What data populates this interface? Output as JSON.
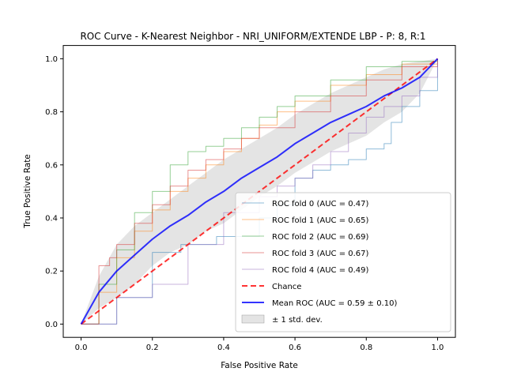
{
  "chart_data": {
    "type": "line",
    "title": "ROC Curve - K-Nearest Neighbor - NRI_UNIFORM/EXTENDE LBP - P: 8, R:1",
    "xlabel": "False Positive Rate",
    "ylabel": "True Positive Rate",
    "xlim": [
      -0.05,
      1.05
    ],
    "ylim": [
      -0.05,
      1.05
    ],
    "xticks": [
      "0.0",
      "0.2",
      "0.4",
      "0.6",
      "0.8",
      "1.0"
    ],
    "yticks": [
      "0.0",
      "0.2",
      "0.4",
      "0.6",
      "0.8",
      "1.0"
    ],
    "grid": false,
    "legend_position": "lower-right",
    "series": [
      {
        "name": "ROC fold 0 (AUC = 0.47)",
        "color": "#1f77b4",
        "style": "step",
        "points": [
          [
            0,
            0
          ],
          [
            0.1,
            0.1
          ],
          [
            0.2,
            0.27
          ],
          [
            0.28,
            0.3
          ],
          [
            0.38,
            0.33
          ],
          [
            0.5,
            0.4
          ],
          [
            0.55,
            0.45
          ],
          [
            0.6,
            0.55
          ],
          [
            0.65,
            0.58
          ],
          [
            0.7,
            0.6
          ],
          [
            0.75,
            0.62
          ],
          [
            0.8,
            0.66
          ],
          [
            0.85,
            0.68
          ],
          [
            0.87,
            0.76
          ],
          [
            0.9,
            0.82
          ],
          [
            0.95,
            0.88
          ],
          [
            1,
            1
          ]
        ]
      },
      {
        "name": "ROC fold 1 (AUC = 0.65)",
        "color": "#ff7f0e",
        "style": "step",
        "points": [
          [
            0,
            0
          ],
          [
            0.05,
            0.12
          ],
          [
            0.1,
            0.25
          ],
          [
            0.15,
            0.35
          ],
          [
            0.2,
            0.43
          ],
          [
            0.25,
            0.5
          ],
          [
            0.3,
            0.55
          ],
          [
            0.35,
            0.6
          ],
          [
            0.4,
            0.65
          ],
          [
            0.45,
            0.7
          ],
          [
            0.5,
            0.75
          ],
          [
            0.55,
            0.8
          ],
          [
            0.6,
            0.84
          ],
          [
            0.7,
            0.9
          ],
          [
            0.8,
            0.94
          ],
          [
            0.9,
            0.98
          ],
          [
            1,
            1
          ]
        ]
      },
      {
        "name": "ROC fold 2 (AUC = 0.69)",
        "color": "#2ca02c",
        "style": "step",
        "points": [
          [
            0,
            0
          ],
          [
            0.05,
            0.15
          ],
          [
            0.1,
            0.28
          ],
          [
            0.15,
            0.42
          ],
          [
            0.2,
            0.5
          ],
          [
            0.25,
            0.6
          ],
          [
            0.3,
            0.65
          ],
          [
            0.35,
            0.67
          ],
          [
            0.4,
            0.7
          ],
          [
            0.45,
            0.74
          ],
          [
            0.5,
            0.78
          ],
          [
            0.55,
            0.82
          ],
          [
            0.6,
            0.86
          ],
          [
            0.7,
            0.92
          ],
          [
            0.8,
            0.97
          ],
          [
            0.9,
            0.99
          ],
          [
            1,
            1
          ]
        ]
      },
      {
        "name": "ROC fold 3 (AUC = 0.67)",
        "color": "#d62728",
        "style": "step",
        "points": [
          [
            0,
            0
          ],
          [
            0.05,
            0.22
          ],
          [
            0.08,
            0.25
          ],
          [
            0.1,
            0.3
          ],
          [
            0.15,
            0.38
          ],
          [
            0.2,
            0.45
          ],
          [
            0.25,
            0.52
          ],
          [
            0.3,
            0.58
          ],
          [
            0.35,
            0.62
          ],
          [
            0.4,
            0.66
          ],
          [
            0.45,
            0.7
          ],
          [
            0.5,
            0.74
          ],
          [
            0.6,
            0.8
          ],
          [
            0.7,
            0.86
          ],
          [
            0.8,
            0.92
          ],
          [
            0.9,
            0.97
          ],
          [
            1,
            1
          ]
        ]
      },
      {
        "name": "ROC fold 4 (AUC = 0.49)",
        "color": "#9467bd",
        "style": "step",
        "points": [
          [
            0,
            0
          ],
          [
            0.1,
            0.1
          ],
          [
            0.2,
            0.15
          ],
          [
            0.3,
            0.3
          ],
          [
            0.4,
            0.42
          ],
          [
            0.5,
            0.48
          ],
          [
            0.55,
            0.52
          ],
          [
            0.6,
            0.55
          ],
          [
            0.65,
            0.6
          ],
          [
            0.7,
            0.65
          ],
          [
            0.75,
            0.72
          ],
          [
            0.8,
            0.78
          ],
          [
            0.85,
            0.82
          ],
          [
            0.9,
            0.86
          ],
          [
            0.95,
            0.93
          ],
          [
            1,
            1
          ]
        ]
      },
      {
        "name": "Chance",
        "color": "#ff0000",
        "style": "dashed",
        "points": [
          [
            0,
            0
          ],
          [
            1,
            1
          ]
        ]
      },
      {
        "name": "Mean ROC (AUC = 0.59 ± 0.10)",
        "color": "#0000ff",
        "style": "mean",
        "points": [
          [
            0,
            0
          ],
          [
            0.05,
            0.12
          ],
          [
            0.1,
            0.2
          ],
          [
            0.15,
            0.26
          ],
          [
            0.2,
            0.32
          ],
          [
            0.25,
            0.37
          ],
          [
            0.3,
            0.41
          ],
          [
            0.35,
            0.46
          ],
          [
            0.4,
            0.5
          ],
          [
            0.45,
            0.55
          ],
          [
            0.5,
            0.59
          ],
          [
            0.55,
            0.63
          ],
          [
            0.6,
            0.68
          ],
          [
            0.65,
            0.72
          ],
          [
            0.7,
            0.76
          ],
          [
            0.75,
            0.79
          ],
          [
            0.8,
            0.82
          ],
          [
            0.85,
            0.86
          ],
          [
            0.9,
            0.89
          ],
          [
            0.95,
            0.93
          ],
          [
            1,
            1
          ]
        ]
      }
    ],
    "std_band": {
      "name": "± 1 std. dev.",
      "color": "#bbbbbb",
      "x": [
        0,
        0.05,
        0.1,
        0.15,
        0.2,
        0.25,
        0.3,
        0.35,
        0.4,
        0.45,
        0.5,
        0.55,
        0.6,
        0.65,
        0.7,
        0.75,
        0.8,
        0.85,
        0.9,
        0.95,
        1
      ],
      "upper": [
        0,
        0.18,
        0.3,
        0.37,
        0.42,
        0.47,
        0.52,
        0.57,
        0.62,
        0.66,
        0.7,
        0.74,
        0.79,
        0.83,
        0.87,
        0.9,
        0.93,
        0.96,
        0.98,
        0.99,
        1
      ],
      "lower": [
        0,
        0.06,
        0.1,
        0.15,
        0.22,
        0.27,
        0.3,
        0.35,
        0.38,
        0.43,
        0.48,
        0.52,
        0.57,
        0.61,
        0.65,
        0.68,
        0.71,
        0.76,
        0.8,
        0.87,
        1
      ]
    }
  }
}
